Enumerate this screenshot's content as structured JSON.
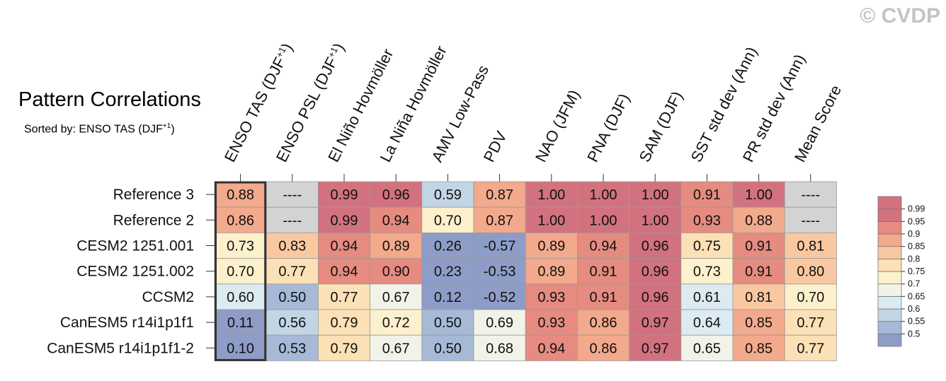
{
  "watermark": "© CVDP",
  "title": "Pattern Correlations",
  "subtitle": {
    "prefix": "Sorted by: ENSO TAS (DJF",
    "sup": "+1",
    "suffix": ")"
  },
  "chart_data": {
    "type": "heatmap",
    "title": "Pattern Correlations",
    "subtitle": "Sorted by: ENSO TAS (DJF+1)",
    "columns": [
      {
        "text": "ENSO TAS (DJF",
        "sup": "+1",
        "tail": ")"
      },
      {
        "text": "ENSO PSL (DJF",
        "sup": "+1",
        "tail": ")"
      },
      {
        "text": "El Niño Hovmöller"
      },
      {
        "text": "La Niña Hovmöller"
      },
      {
        "text": "AMV Low-Pass"
      },
      {
        "text": "PDV"
      },
      {
        "text": "NAO (JFM)"
      },
      {
        "text": "PNA (DJF)"
      },
      {
        "text": "SAM (DJF)"
      },
      {
        "text": "SST std dev (Ann)"
      },
      {
        "text": "PR std dev (Ann)"
      },
      {
        "text": "Mean Score"
      }
    ],
    "rows": [
      "Reference 3",
      "Reference 2",
      "CESM2 1251.001",
      "CESM2 1251.002",
      "CCSM2",
      "CanESM5 r14i1p1f1",
      "CanESM5 r14i1p1f1-2"
    ],
    "values": [
      [
        "0.88",
        "----",
        "0.99",
        "0.96",
        "0.59",
        "0.87",
        "1.00",
        "1.00",
        "1.00",
        "0.91",
        "1.00",
        "----"
      ],
      [
        "0.86",
        "----",
        "0.99",
        "0.94",
        "0.70",
        "0.87",
        "1.00",
        "1.00",
        "1.00",
        "0.93",
        "0.88",
        "----"
      ],
      [
        "0.73",
        "0.83",
        "0.94",
        "0.89",
        "0.26",
        "-0.57",
        "0.89",
        "0.94",
        "0.96",
        "0.75",
        "0.91",
        "0.81"
      ],
      [
        "0.70",
        "0.77",
        "0.94",
        "0.90",
        "0.23",
        "-0.53",
        "0.89",
        "0.91",
        "0.96",
        "0.73",
        "0.91",
        "0.80"
      ],
      [
        "0.60",
        "0.50",
        "0.77",
        "0.67",
        "0.12",
        "-0.52",
        "0.93",
        "0.91",
        "0.96",
        "0.61",
        "0.81",
        "0.70"
      ],
      [
        "0.11",
        "0.56",
        "0.79",
        "0.72",
        "0.50",
        "0.69",
        "0.93",
        "0.86",
        "0.97",
        "0.64",
        "0.85",
        "0.77"
      ],
      [
        "0.10",
        "0.53",
        "0.79",
        "0.67",
        "0.50",
        "0.68",
        "0.94",
        "0.86",
        "0.97",
        "0.65",
        "0.85",
        "0.77"
      ]
    ],
    "highlighted_column": 0,
    "missing_color": "#d3d3d3",
    "colorbar": {
      "labels": [
        "0.99",
        "0.95",
        "0.9",
        "0.85",
        "0.8",
        "0.75",
        "0.7",
        "0.65",
        "0.6",
        "0.55",
        "0.5"
      ],
      "boundaries": [
        0.5,
        0.55,
        0.6,
        0.65,
        0.7,
        0.75,
        0.8,
        0.85,
        0.9,
        0.95,
        0.99
      ],
      "colors": [
        "#8e9dc7",
        "#a6b9d7",
        "#c2d5e5",
        "#dceaf1",
        "#f1f3e8",
        "#fdf0cc",
        "#fce0b6",
        "#f9c8a0",
        "#f2a98c",
        "#e58b80",
        "#d2727f",
        "#d2727f"
      ]
    }
  }
}
